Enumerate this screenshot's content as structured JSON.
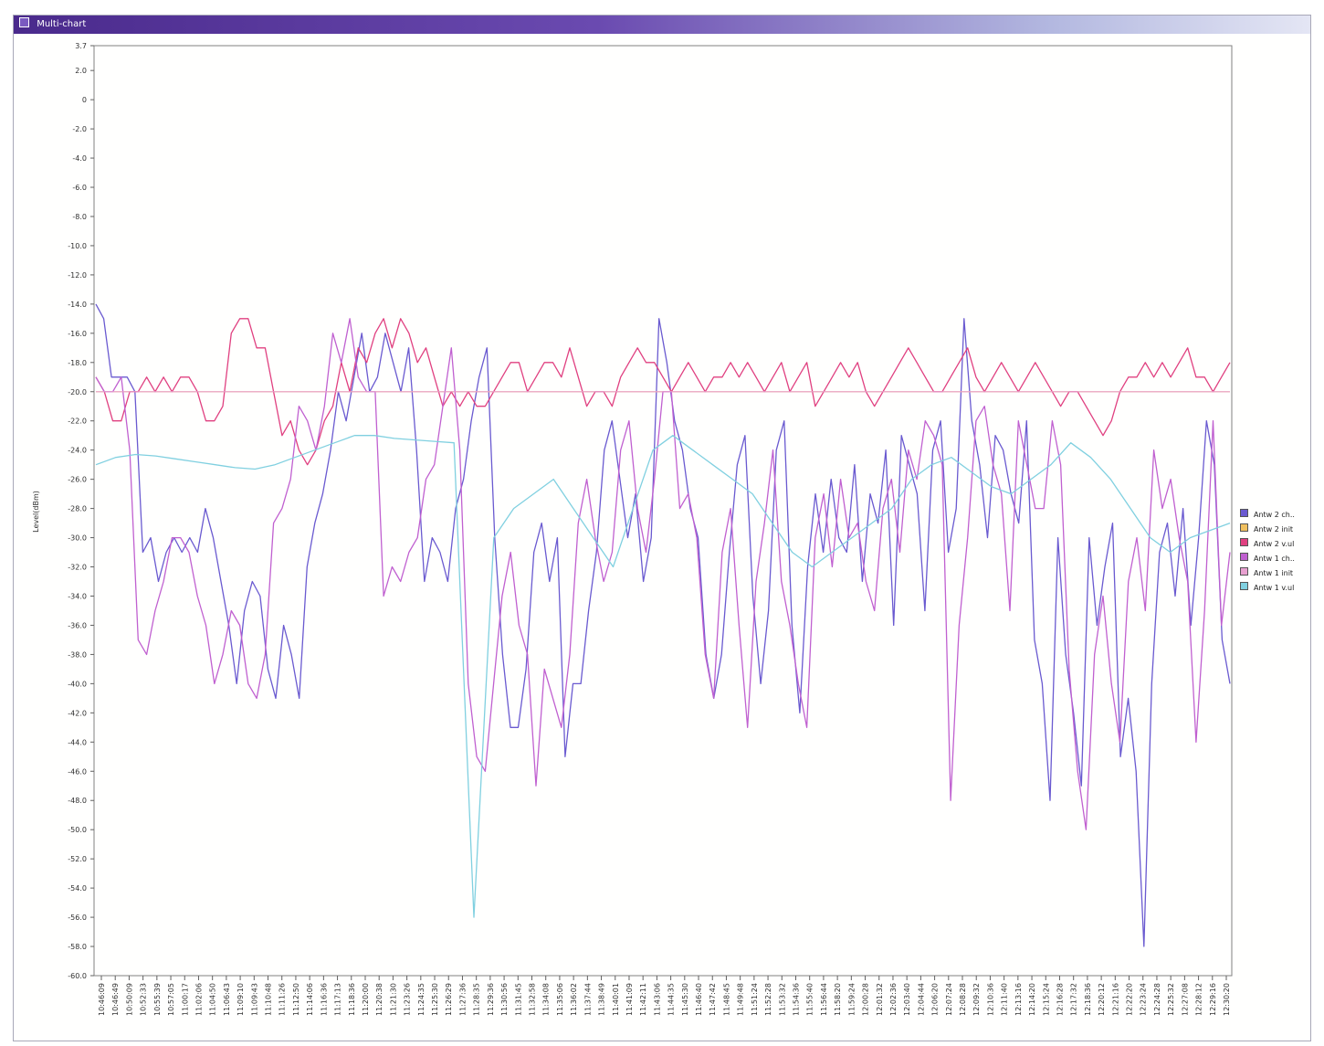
{
  "window": {
    "title": "Multi-chart",
    "title_icon": "chart-window-icon"
  },
  "chart_data": {
    "type": "line",
    "title": "",
    "xlabel": "",
    "ylabel": "Level(dBm)",
    "ylim": [
      -60.0,
      3.7
    ],
    "y_ticks": [
      "3.7",
      "2.0",
      "0",
      "-2.0",
      "-4.0",
      "-6.0",
      "-8.0",
      "-10.0",
      "-12.0",
      "-14.0",
      "-16.0",
      "-18.0",
      "-20.0",
      "-22.0",
      "-24.0",
      "-26.0",
      "-28.0",
      "-30.0",
      "-32.0",
      "-34.0",
      "-36.0",
      "-38.0",
      "-40.0",
      "-42.0",
      "-44.0",
      "-46.0",
      "-48.0",
      "-50.0",
      "-52.0",
      "-54.0",
      "-56.0",
      "-58.0",
      "-60.0"
    ],
    "grid": false,
    "legend_position": "right",
    "x_ticks": [
      "10:46:09",
      "10:46:30",
      "10:46:49",
      "10:48:55",
      "10:50:09",
      "10:51:33",
      "10:52:33",
      "10:53:14",
      "10:54:06",
      "10:55:39",
      "10:56:34",
      "10:57:05",
      "10:58:09",
      "11:00:17",
      "11:01:05",
      "11:02:06",
      "11:03:12",
      "11:04:50",
      "11:05:23",
      "11:06:43",
      "11:07:04",
      "11:08:31",
      "11:09:10",
      "11:09:24",
      "11:09:43",
      "11:10:13",
      "11:10:48",
      "11:11:05",
      "11:11:26",
      "11:12:05",
      "11:12:50",
      "11:13:11",
      "11:14:06",
      "11:14:35",
      "11:15:06",
      "11:16:36",
      "11:16:34",
      "11:17:13",
      "11:18:09",
      "11:18:36",
      "11:19:23",
      "11:20:00",
      "11:20:24",
      "11:20:38",
      "11:21:05",
      "11:21:30",
      "11:22:08",
      "11:22:51",
      "11:23:26",
      "11:24:09",
      "11:24:35",
      "11:25:05",
      "11:25:30",
      "11:26:03",
      "11:26:29",
      "11:27:00",
      "11:27:36",
      "11:28:08",
      "11:28:35",
      "11:29:02",
      "11:29:36",
      "11:30:01",
      "11:30:28",
      "11:30:56",
      "11:31:19",
      "11:31:45",
      "11:32:16",
      "11:32:58",
      "11:33:31",
      "11:34:08",
      "11:34:45",
      "11:35:06",
      "11:35:38",
      "11:36:02",
      "11:36:41",
      "11:37:10",
      "11:37:44",
      "11:38:15",
      "11:38:49",
      "11:39:30",
      "11:40:01",
      "11:40:38",
      "11:41:09",
      "11:41:40",
      "11:42:11",
      "11:42:40",
      "11:43:06",
      "11:43:37",
      "11:44:09",
      "11:44:35",
      "11:45:00",
      "11:45:30",
      "11:46:08",
      "11:46:40",
      "11:47:10",
      "11:47:42",
      "11:48:15",
      "11:48:45",
      "11:49:16",
      "11:49:48",
      "11:50:20",
      "11:50:52",
      "11:51:24",
      "11:51:56",
      "11:52:28",
      "11:53:00",
      "11:53:32",
      "11:54:04",
      "11:54:36",
      "11:55:08",
      "11:55:40",
      "11:56:12",
      "11:56:44",
      "11:57:16",
      "11:57:48",
      "11:58:20",
      "11:58:52",
      "11:59:24",
      "11:59:56",
      "12:00:28",
      "12:01:00",
      "12:01:32",
      "12:02:04",
      "12:02:36",
      "12:03:08",
      "12:03:40",
      "12:04:12",
      "12:04:44",
      "12:05:16",
      "12:05:48",
      "12:06:20",
      "12:06:52",
      "12:07:24",
      "12:07:56",
      "12:08:28",
      "12:09:00",
      "12:09:32",
      "12:10:04",
      "12:10:36",
      "12:11:08",
      "12:11:40",
      "12:12:12",
      "12:12:44",
      "12:13:16",
      "12:13:48",
      "12:14:20",
      "12:14:52",
      "12:15:24",
      "12:15:56",
      "12:16:28",
      "12:17:00",
      "12:17:32",
      "12:18:04",
      "12:18:36",
      "12:19:08",
      "12:19:40",
      "12:20:12",
      "12:20:44",
      "12:21:16",
      "12:21:48",
      "12:22:20",
      "12:22:52",
      "12:23:24",
      "12:23:56",
      "12:24:28",
      "12:25:00",
      "12:25:32",
      "12:26:04",
      "12:26:36",
      "12:27:08",
      "12:27:40",
      "12:28:12",
      "12:28:44",
      "12:29:16",
      "12:29:48",
      "12:30:20"
    ],
    "series": [
      {
        "name": "Antw 2 ch..",
        "color": "#6a5ad0",
        "values": [
          -14,
          -15,
          -19,
          -19,
          -19,
          -20,
          -31,
          -30,
          -33,
          -31,
          -30,
          -31,
          -30,
          -31,
          -28,
          -30,
          -33,
          -36,
          -40,
          -35,
          -33,
          -34,
          -39,
          -41,
          -36,
          -38,
          -41,
          -32,
          -29,
          -27,
          -24,
          -20,
          -22,
          -19,
          -16,
          -20,
          -19,
          -16,
          -18,
          -20,
          -17,
          -24,
          -33,
          -30,
          -31,
          -33,
          -28,
          -26,
          -22,
          -19,
          -17,
          -30,
          -38,
          -43,
          -43,
          -39,
          -31,
          -29,
          -33,
          -30,
          -45,
          -40,
          -40,
          -35,
          -31,
          -24,
          -22,
          -26,
          -30,
          -27,
          -33,
          -30,
          -15,
          -18,
          -22,
          -24,
          -28,
          -30,
          -38,
          -41,
          -38,
          -31,
          -25,
          -23,
          -34,
          -40,
          -35,
          -24,
          -22,
          -36,
          -42,
          -32,
          -27,
          -31,
          -26,
          -30,
          -31,
          -25,
          -33,
          -27,
          -29,
          -24,
          -36,
          -23,
          -25,
          -27,
          -35,
          -24,
          -22,
          -31,
          -28,
          -15,
          -22,
          -25,
          -30,
          -23,
          -24,
          -27,
          -29,
          -22,
          -37,
          -40,
          -48,
          -30,
          -38,
          -42,
          -47,
          -30,
          -36,
          -32,
          -29,
          -45,
          -41,
          -46,
          -58,
          -40,
          -31,
          -29,
          -34,
          -28,
          -36,
          -30,
          -22,
          -25,
          -37,
          -40
        ]
      },
      {
        "name": "Antw 2 init",
        "color": "#f0c060",
        "values": [
          -20,
          -20,
          -20,
          -20,
          -20,
          -20,
          -20,
          -20,
          -20,
          -20,
          -20,
          -20,
          -20,
          -20,
          -20,
          -20,
          -20,
          -20,
          -20,
          -20,
          -20,
          -20,
          -20,
          -20,
          -20,
          -20,
          -20,
          -20,
          -20,
          -20,
          -20,
          -20,
          -20,
          -20,
          -20,
          -20,
          -20,
          -20,
          -20,
          -20
        ]
      },
      {
        "name": "Antw 2 v.ul",
        "color": "#e04080",
        "values": [
          -19,
          -20,
          -22,
          -22,
          -20,
          -20,
          -19,
          -20,
          -19,
          -20,
          -19,
          -19,
          -20,
          -22,
          -22,
          -21,
          -16,
          -15,
          -15,
          -17,
          -17,
          -20,
          -23,
          -22,
          -24,
          -25,
          -24,
          -22,
          -21,
          -18,
          -20,
          -17,
          -18,
          -16,
          -15,
          -17,
          -15,
          -16,
          -18,
          -17,
          -19,
          -21,
          -20,
          -21,
          -20,
          -21,
          -21,
          -20,
          -19,
          -18,
          -18,
          -20,
          -19,
          -18,
          -18,
          -19,
          -17,
          -19,
          -21,
          -20,
          -20,
          -21,
          -19,
          -18,
          -17,
          -18,
          -18,
          -19,
          -20,
          -19,
          -18,
          -19,
          -20,
          -19,
          -19,
          -18,
          -19,
          -18,
          -19,
          -20,
          -19,
          -18,
          -20,
          -19,
          -18,
          -21,
          -20,
          -19,
          -18,
          -19,
          -18,
          -20,
          -21,
          -20,
          -19,
          -18,
          -17,
          -18,
          -19,
          -20,
          -20,
          -19,
          -18,
          -17,
          -19,
          -20,
          -19,
          -18,
          -19,
          -20,
          -19,
          -18,
          -19,
          -20,
          -21,
          -20,
          -20,
          -21,
          -22,
          -23,
          -22,
          -20,
          -19,
          -19,
          -18,
          -19,
          -18,
          -19,
          -18,
          -17,
          -19,
          -19,
          -20,
          -19,
          -18
        ]
      },
      {
        "name": "Antw 1 ch..",
        "color": "#c060d0",
        "values": [
          -19,
          -20,
          -20,
          -19,
          -24,
          -37,
          -38,
          -35,
          -33,
          -30,
          -30,
          -31,
          -34,
          -36,
          -40,
          -38,
          -35,
          -36,
          -40,
          -41,
          -38,
          -29,
          -28,
          -26,
          -21,
          -22,
          -24,
          -21,
          -16,
          -18,
          -15,
          -19,
          -20,
          -20,
          -34,
          -32,
          -33,
          -31,
          -30,
          -26,
          -25,
          -21,
          -17,
          -24,
          -40,
          -45,
          -46,
          -40,
          -34,
          -31,
          -36,
          -38,
          -47,
          -39,
          -41,
          -43,
          -38,
          -29,
          -26,
          -30,
          -33,
          -31,
          -24,
          -22,
          -28,
          -31,
          -26,
          -20,
          -20,
          -28,
          -27,
          -30,
          -38,
          -41,
          -31,
          -28,
          -36,
          -43,
          -33,
          -29,
          -24,
          -33,
          -36,
          -40,
          -43,
          -30,
          -27,
          -32,
          -26,
          -30,
          -29,
          -33,
          -35,
          -28,
          -26,
          -31,
          -24,
          -26,
          -22,
          -23,
          -25,
          -48,
          -36,
          -30,
          -22,
          -21,
          -25,
          -27,
          -35,
          -22,
          -25,
          -28,
          -28,
          -22,
          -25,
          -39,
          -46,
          -50,
          -38,
          -34,
          -40,
          -44,
          -33,
          -30,
          -35,
          -24,
          -28,
          -26,
          -30,
          -33,
          -44,
          -35,
          -22,
          -36,
          -31
        ]
      },
      {
        "name": "Antw 1 init",
        "color": "#e8a0d0",
        "values": [
          -20,
          -20,
          -20,
          -20,
          -20,
          -20,
          -20,
          -20,
          -20,
          -20
        ]
      },
      {
        "name": "Antw 1 v.ul",
        "color": "#80d0e0",
        "values": [
          -25,
          -24.5,
          -24.3,
          -24.4,
          -24.6,
          -24.8,
          -25,
          -25.2,
          -25.3,
          -25,
          -24.5,
          -24,
          -23.5,
          -23,
          -23,
          -23.2,
          -23.3,
          -23.4,
          -23.5,
          -56,
          -30,
          -28,
          -27,
          -26,
          -28,
          -30,
          -32,
          -28,
          -24,
          -23,
          -24,
          -25,
          -26,
          -27,
          -29,
          -31,
          -32,
          -31,
          -30,
          -29,
          -28,
          -26,
          -25,
          -24.5,
          -25.5,
          -26.5,
          -27,
          -26,
          -25,
          -23.5,
          -24.5,
          -26,
          -28,
          -30,
          -31,
          -30,
          -29.5,
          -29
        ]
      }
    ]
  }
}
